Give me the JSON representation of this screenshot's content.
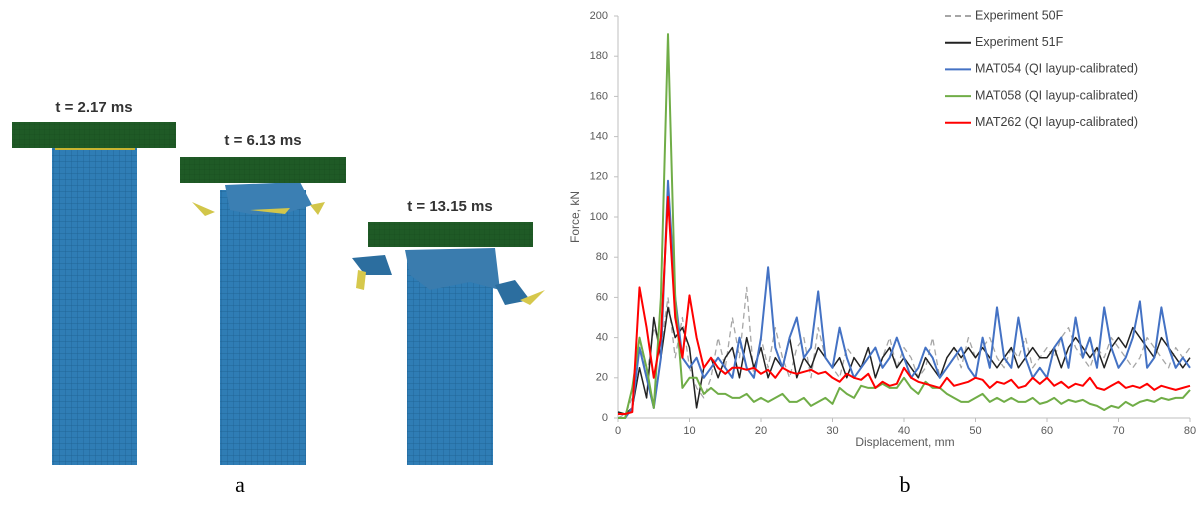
{
  "figure": {
    "panel_a": {
      "labels": [
        "t = 2.17 ms",
        "t = 6.13 ms",
        "t = 13.15 ms"
      ]
    },
    "captions": [
      "a",
      "b"
    ]
  },
  "chart_data": {
    "type": "line",
    "xlabel": "Displacement, mm",
    "ylabel": "Force, kN",
    "xlim": [
      0,
      80
    ],
    "ylim": [
      0,
      200
    ],
    "xticks": [
      0,
      10,
      20,
      30,
      40,
      50,
      60,
      70,
      80
    ],
    "yticks": [
      0,
      20,
      40,
      60,
      80,
      100,
      120,
      140,
      160,
      180,
      200
    ],
    "grid": false,
    "legend": "upper right",
    "x": [
      0,
      1,
      2,
      3,
      4,
      5,
      6,
      7,
      8,
      9,
      10,
      11,
      12,
      13,
      14,
      15,
      16,
      17,
      18,
      19,
      20,
      21,
      22,
      23,
      24,
      25,
      26,
      27,
      28,
      29,
      30,
      31,
      32,
      33,
      34,
      35,
      36,
      37,
      38,
      39,
      40,
      41,
      42,
      43,
      44,
      45,
      46,
      47,
      48,
      49,
      50,
      51,
      52,
      53,
      54,
      55,
      56,
      57,
      58,
      59,
      60,
      61,
      62,
      63,
      64,
      65,
      66,
      67,
      68,
      69,
      70,
      71,
      72,
      73,
      74,
      75,
      76,
      77,
      78,
      79,
      80
    ],
    "series": [
      {
        "name": "Experiment 50F",
        "color": "#a6a6a6",
        "dashed": true,
        "values": [
          0,
          2,
          10,
          40,
          20,
          45,
          35,
          60,
          30,
          50,
          25,
          15,
          10,
          20,
          40,
          25,
          50,
          30,
          65,
          20,
          40,
          25,
          45,
          30,
          20,
          35,
          40,
          20,
          45,
          30,
          25,
          20,
          35,
          30,
          25,
          35,
          20,
          30,
          40,
          25,
          35,
          30,
          20,
          25,
          40,
          20,
          30,
          35,
          25,
          40,
          30,
          35,
          40,
          30,
          25,
          35,
          30,
          40,
          25,
          30,
          35,
          30,
          40,
          45,
          35,
          30,
          25,
          35,
          30,
          40,
          35,
          30,
          25,
          30,
          40,
          35,
          30,
          25,
          35,
          30,
          35
        ]
      },
      {
        "name": "Experiment 51F",
        "color": "#222222",
        "dashed": false,
        "values": [
          3,
          2,
          5,
          25,
          10,
          50,
          30,
          55,
          40,
          45,
          35,
          5,
          25,
          30,
          20,
          30,
          35,
          20,
          40,
          25,
          35,
          20,
          30,
          25,
          40,
          20,
          30,
          25,
          35,
          30,
          25,
          30,
          20,
          30,
          25,
          35,
          20,
          30,
          35,
          25,
          30,
          25,
          20,
          30,
          25,
          20,
          30,
          35,
          30,
          35,
          30,
          35,
          30,
          25,
          30,
          35,
          25,
          30,
          35,
          30,
          30,
          35,
          25,
          35,
          40,
          35,
          30,
          35,
          25,
          35,
          40,
          35,
          45,
          40,
          35,
          30,
          40,
          35,
          30,
          25,
          30
        ]
      },
      {
        "name": "MAT054 (QI layup-calibrated)",
        "color": "#4472c4",
        "dashed": false,
        "values": [
          0,
          0,
          5,
          35,
          20,
          5,
          30,
          118,
          60,
          30,
          25,
          30,
          20,
          25,
          30,
          25,
          20,
          40,
          25,
          20,
          40,
          75,
          35,
          25,
          40,
          50,
          30,
          35,
          63,
          30,
          25,
          45,
          30,
          20,
          25,
          30,
          35,
          25,
          30,
          40,
          30,
          20,
          25,
          35,
          30,
          20,
          25,
          30,
          35,
          25,
          20,
          40,
          25,
          55,
          30,
          25,
          50,
          30,
          20,
          25,
          20,
          35,
          40,
          25,
          50,
          30,
          40,
          25,
          55,
          35,
          25,
          30,
          40,
          58,
          25,
          30,
          55,
          35,
          25,
          30,
          25
        ]
      },
      {
        "name": "MAT058 (QI layup-calibrated)",
        "color": "#70ad47",
        "dashed": false,
        "values": [
          0,
          0,
          15,
          40,
          25,
          5,
          60,
          191,
          60,
          15,
          20,
          20,
          12,
          15,
          12,
          12,
          10,
          10,
          12,
          8,
          10,
          8,
          10,
          12,
          8,
          8,
          10,
          6,
          8,
          10,
          7,
          15,
          12,
          10,
          16,
          15,
          15,
          17,
          15,
          15,
          20,
          15,
          12,
          18,
          15,
          15,
          12,
          10,
          8,
          8,
          10,
          12,
          8,
          10,
          8,
          10,
          8,
          8,
          10,
          7,
          8,
          10,
          7,
          9,
          8,
          9,
          7,
          6,
          4,
          6,
          5,
          8,
          6,
          8,
          9,
          8,
          10,
          9,
          10,
          10,
          14
        ]
      },
      {
        "name": "MAT262 (QI layup-calibrated)",
        "color": "#ff0000",
        "dashed": false,
        "values": [
          2,
          2,
          3,
          65,
          45,
          20,
          40,
          110,
          50,
          30,
          61,
          40,
          25,
          30,
          25,
          22,
          25,
          25,
          24,
          25,
          22,
          24,
          20,
          25,
          23,
          22,
          23,
          24,
          22,
          23,
          20,
          18,
          22,
          20,
          19,
          22,
          15,
          18,
          16,
          17,
          25,
          20,
          18,
          17,
          16,
          15,
          20,
          16,
          17,
          18,
          20,
          19,
          15,
          18,
          17,
          19,
          15,
          16,
          20,
          17,
          20,
          16,
          18,
          15,
          17,
          16,
          20,
          15,
          14,
          16,
          18,
          15,
          16,
          15,
          17,
          14,
          16,
          15,
          14,
          15,
          16
        ]
      }
    ]
  }
}
